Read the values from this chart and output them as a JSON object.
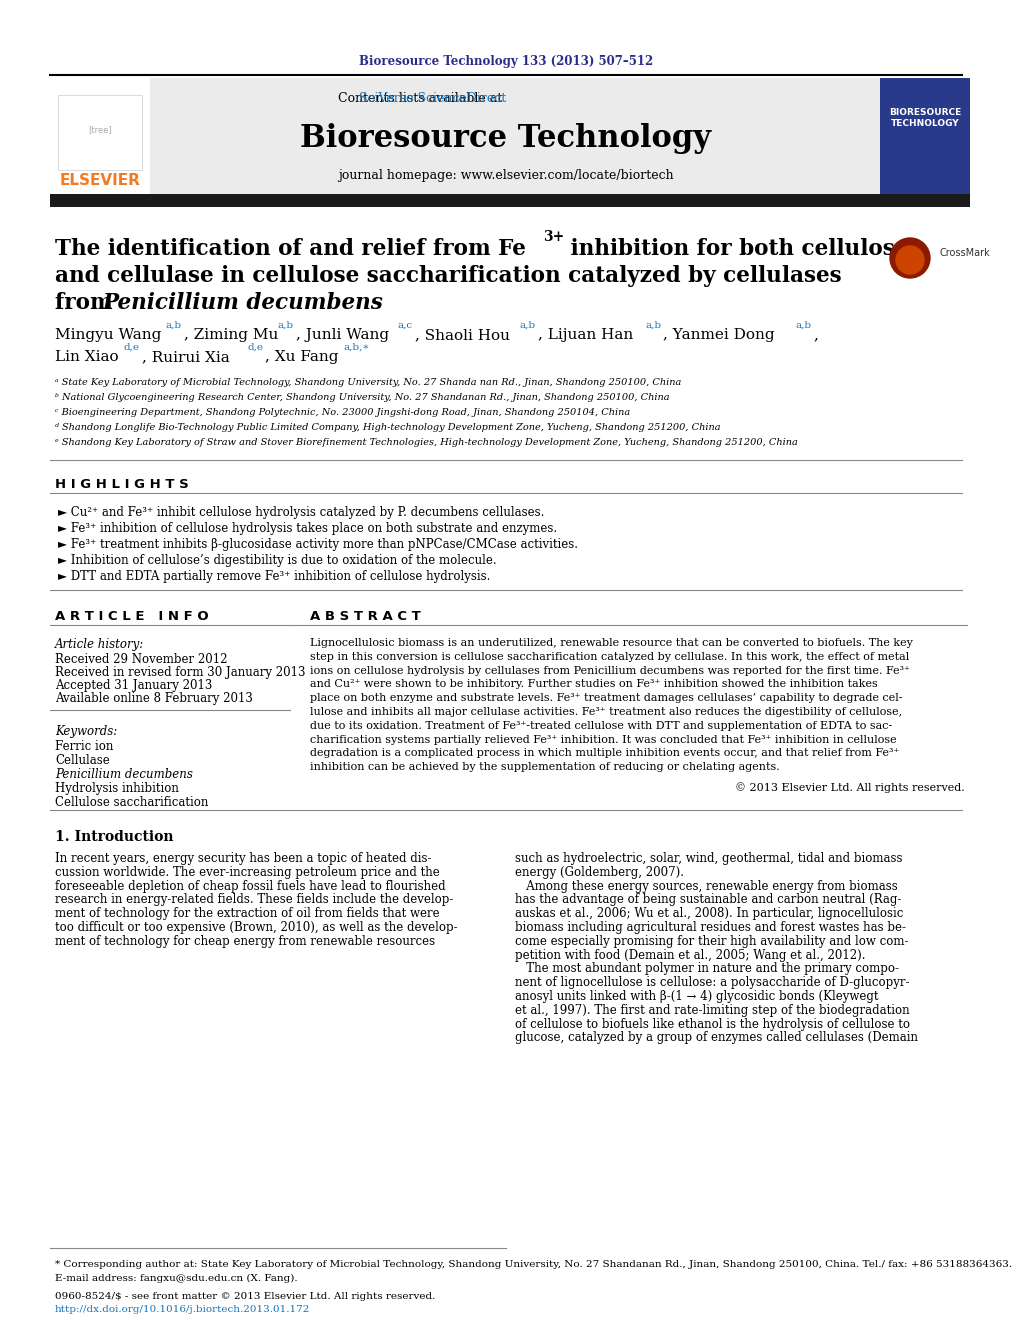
{
  "journal_header": "Bioresource Technology 133 (2013) 507–512",
  "journal_name": "Bioresource Technology",
  "contents_line": "Contents lists available at SciVerse ScienceDirect",
  "journal_homepage": "journal homepage: www.elsevier.com/locate/biortech",
  "highlights_title": "H I G H L I G H T S",
  "highlight1": "► Cu²⁺ and Fe³⁺ inhibit cellulose hydrolysis catalyzed by P. decumbens cellulases.",
  "highlight2": "► Fe³⁺ inhibition of cellulose hydrolysis takes place on both substrate and enzymes.",
  "highlight3": "► Fe³⁺ treatment inhibits β-glucosidase activity more than pNPCase/CMCase activities.",
  "highlight4": "► Inhibition of cellulose’s digestibility is due to oxidation of the molecule.",
  "highlight5": "► DTT and EDTA partially remove Fe³⁺ inhibition of cellulose hydrolysis.",
  "article_info_title": "A R T I C L E   I N F O",
  "abstract_title": "A B S T R A C T",
  "article_history": "Article history:",
  "received": "Received 29 November 2012",
  "revised": "Received in revised form 30 January 2013",
  "accepted": "Accepted 31 January 2013",
  "available": "Available online 8 February 2013",
  "keywords_title": "Keywords:",
  "kw1": "Ferric ion",
  "kw2": "Cellulase",
  "kw3": "Penicillium decumbens",
  "kw4": "Hydrolysis inhibition",
  "kw5": "Cellulose saccharification",
  "affil_a": "ᵃ State Key Laboratory of Microbial Technology, Shandong University, No. 27 Shanda nan Rd., Jinan, Shandong 250100, China",
  "affil_b": "ᵇ National Glycoengineering Research Center, Shandong University, No. 27 Shandanan Rd., Jinan, Shandong 250100, China",
  "affil_c": "ᶜ Bioengineering Department, Shandong Polytechnic, No. 23000 Jingshi-dong Road, Jinan, Shandong 250104, China",
  "affil_d": "ᵈ Shandong Longlife Bio-Technology Public Limited Company, High-technology Development Zone, Yucheng, Shandong 251200, China",
  "affil_e": "ᵉ Shandong Key Laboratory of Straw and Stover Biorefinement Technologies, High-technology Development Zone, Yucheng, Shandong 251200, China",
  "abstract_copyright": "© 2013 Elsevier Ltd. All rights reserved.",
  "intro_title": "1. Introduction",
  "footer_note": "* Corresponding author at: State Key Laboratory of Microbial Technology, Shandong University, No. 27 Shandanan Rd., Jinan, Shandong 250100, China. Tel./ fax: +86 53188364363.",
  "footer_email": "E-mail address: fangxu@sdu.edu.cn (X. Fang).",
  "footer_issn": "0960-8524/$ - see front matter © 2013 Elsevier Ltd. All rights reserved.",
  "footer_doi": "http://dx.doi.org/10.1016/j.biortech.2013.01.172",
  "bg_color": "#ffffff",
  "dark_bar_color": "#1a1a1a",
  "header_text_color": "#2b2b8a",
  "elsevier_orange": "#f47920",
  "link_color": "#1a75b8",
  "abstract_lines": [
    "Lignocellulosic biomass is an underutilized, renewable resource that can be converted to biofuels. The key",
    "step in this conversion is cellulose saccharification catalyzed by cellulase. In this work, the effect of metal",
    "ions on cellulose hydrolysis by cellulases from Penicillium decumbens was reported for the first time. Fe³⁺",
    "and Cu²⁺ were shown to be inhibitory. Further studies on Fe³⁺ inhibition showed the inhibition takes",
    "place on both enzyme and substrate levels. Fe³⁺ treatment damages cellulases’ capability to degrade cel-",
    "lulose and inhibits all major cellulase activities. Fe³⁺ treatment also reduces the digestibility of cellulose,",
    "due to its oxidation. Treatment of Fe³⁺-treated cellulose with DTT and supplementation of EDTA to sac-",
    "charification systems partially relieved Fe³⁺ inhibition. It was concluded that Fe³⁺ inhibition in cellulose",
    "degradation is a complicated process in which multiple inhibition events occur, and that relief from Fe³⁺",
    "inhibition can be achieved by the supplementation of reducing or chelating agents."
  ],
  "intro_left_lines": [
    "In recent years, energy security has been a topic of heated dis-",
    "cussion worldwide. The ever-increasing petroleum price and the",
    "foreseeable depletion of cheap fossil fuels have lead to flourished",
    "research in energy-related fields. These fields include the develop-",
    "ment of technology for the extraction of oil from fields that were",
    "too difficult or too expensive (Brown, 2010), as well as the develop-",
    "ment of technology for cheap energy from renewable resources"
  ],
  "intro_right_lines": [
    "such as hydroelectric, solar, wind, geothermal, tidal and biomass",
    "energy (Goldemberg, 2007).",
    "   Among these energy sources, renewable energy from biomass",
    "has the advantage of being sustainable and carbon neutral (Rag-",
    "auskas et al., 2006; Wu et al., 2008). In particular, lignocellulosic",
    "biomass including agricultural residues and forest wastes has be-",
    "come especially promising for their high availability and low com-",
    "petition with food (Demain et al., 2005; Wang et al., 2012).",
    "   The most abundant polymer in nature and the primary compo-",
    "nent of lignocellulose is cellulose: a polysaccharide of D-glucopyr-",
    "anosyl units linked with β-(1 → 4) glycosidic bonds (Kleywegt",
    "et al., 1997). The first and rate-limiting step of the biodegradation",
    "of cellulose to biofuels like ethanol is the hydrolysis of cellulose to",
    "glucose, catalyzed by a group of enzymes called cellulases (Demain"
  ]
}
